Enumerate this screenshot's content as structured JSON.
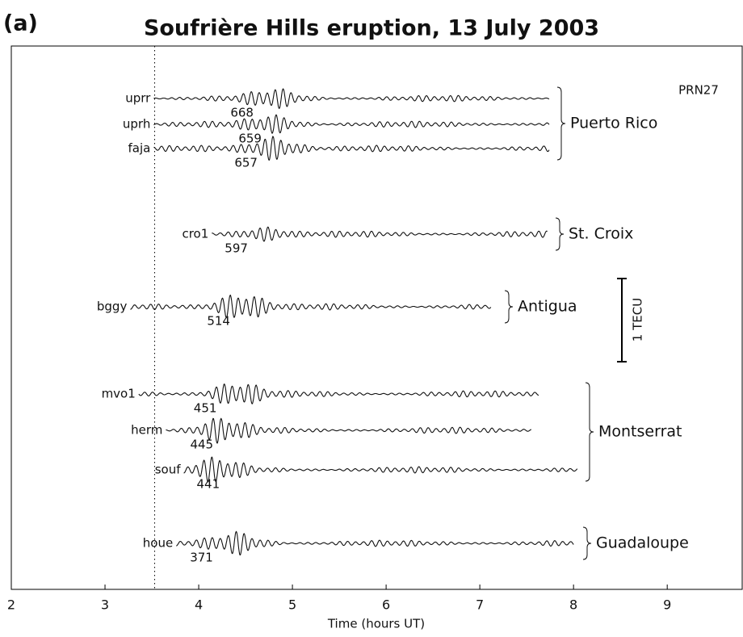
{
  "chart_data": {
    "type": "seismic",
    "panel_label": "(a)",
    "title": "Soufrière Hills eruption, 13 July 2003",
    "annotation": "PRN27",
    "xlabel": "Time (hours UT)",
    "xlim": [
      2,
      9.8
    ],
    "xticks": [
      2,
      3,
      4,
      5,
      6,
      7,
      8,
      9
    ],
    "reference_time": 3.53,
    "scale_label": "1 TECU",
    "groups": [
      {
        "name": "Puerto Rico",
        "stations": [
          {
            "name": "uprr",
            "distance": 668,
            "start": 3.52,
            "end": 7.74,
            "peak": 4.8
          },
          {
            "name": "uprh",
            "distance": 659,
            "start": 3.52,
            "end": 7.74,
            "peak": 4.78
          },
          {
            "name": "faja",
            "distance": 657,
            "start": 3.52,
            "end": 7.74,
            "peak": 4.8
          }
        ]
      },
      {
        "name": "St. Croix",
        "stations": [
          {
            "name": "cro1",
            "distance": 597,
            "start": 4.14,
            "end": 7.72,
            "peak": 4.7
          }
        ]
      },
      {
        "name": "Antigua",
        "stations": [
          {
            "name": "bggy",
            "distance": 514,
            "start": 3.27,
            "end": 7.12,
            "peak": 4.45
          }
        ]
      },
      {
        "name": "Montserrat",
        "stations": [
          {
            "name": "mvo1",
            "distance": 451,
            "start": 3.36,
            "end": 7.63,
            "peak": 4.4
          },
          {
            "name": "herm",
            "distance": 445,
            "start": 3.65,
            "end": 7.55,
            "peak": 4.25
          },
          {
            "name": "souf",
            "distance": 441,
            "start": 3.84,
            "end": 8.04,
            "peak": 4.2
          }
        ]
      },
      {
        "name": "Guadaloupe",
        "stations": [
          {
            "name": "houe",
            "distance": 371,
            "start": 3.76,
            "end": 8.0,
            "peak": 4.4
          }
        ]
      }
    ]
  }
}
